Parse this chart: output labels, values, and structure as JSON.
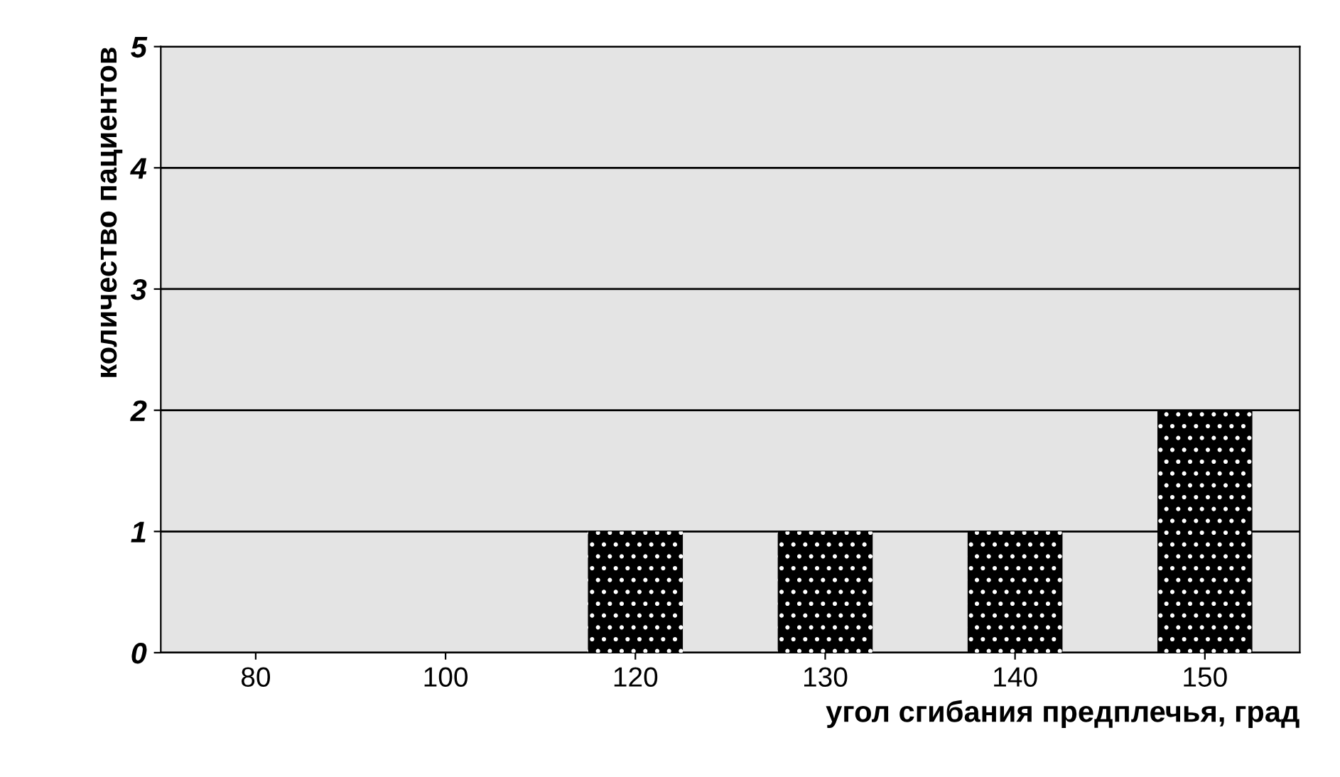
{
  "chart_data": {
    "type": "bar",
    "xlabel": "угол сгибания предплечья, град",
    "ylabel": "количество пациентов",
    "categories": [
      "80",
      "100",
      "120",
      "130",
      "140",
      "150"
    ],
    "values": [
      0,
      0,
      1,
      1,
      1,
      2
    ],
    "color": "#000000",
    "ylim": [
      0,
      5
    ],
    "yticks": [
      0,
      1,
      2,
      3,
      4,
      5
    ],
    "grid": "y"
  }
}
